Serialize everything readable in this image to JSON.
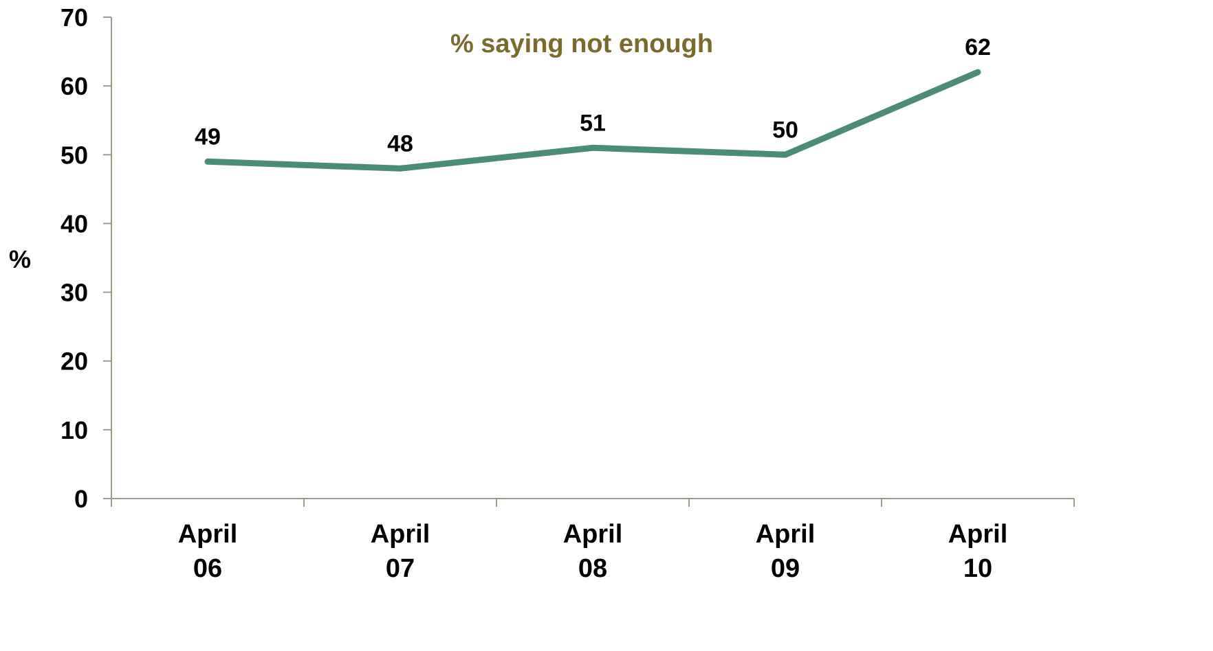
{
  "chart_data": {
    "type": "line",
    "categories": [
      [
        "April",
        "06"
      ],
      [
        "April",
        "07"
      ],
      [
        "April",
        "08"
      ],
      [
        "April",
        "09"
      ],
      [
        "April",
        "10"
      ]
    ],
    "series": [
      {
        "values": [
          49,
          48,
          51,
          50,
          62
        ],
        "color": "#4a8c78"
      }
    ],
    "data_labels": [
      "49",
      "48",
      "51",
      "50",
      "62"
    ],
    "annotation": "% saying not enough",
    "annotation_color": "#7a6a2c",
    "ylabel": "%",
    "xlabel": "",
    "ylim": [
      0,
      70
    ],
    "yticks": [
      0,
      10,
      20,
      30,
      40,
      50,
      60,
      70
    ],
    "axis_color": "#a09a88",
    "grid": false,
    "legend": "none"
  }
}
